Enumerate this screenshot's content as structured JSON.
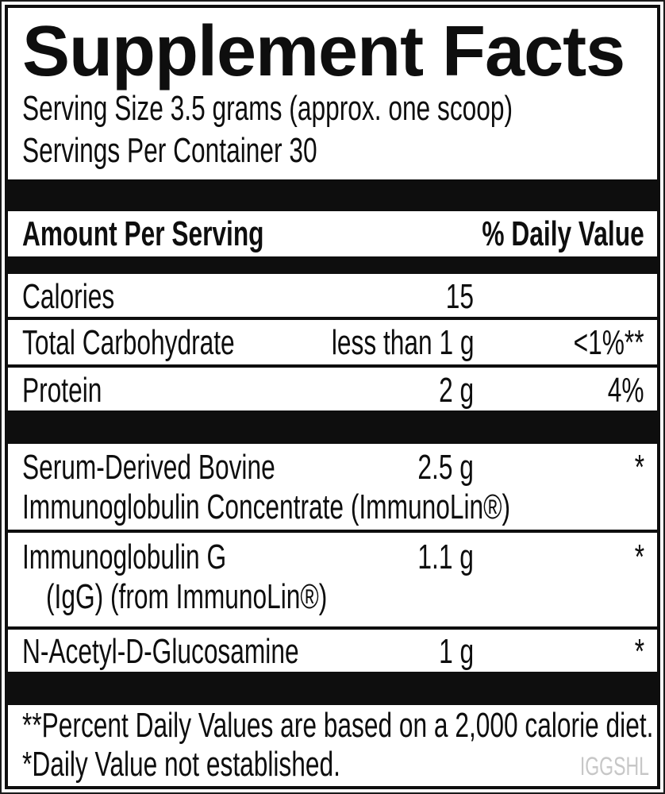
{
  "colors": {
    "ink": "#0e0e0e",
    "background": "#ffffff",
    "watermark": "#c7c7c7"
  },
  "panel": {
    "title": "Supplement Facts",
    "serving_size_line": "Serving Size 3.5 grams (approx. one scoop)",
    "servings_per_container_line": "Servings Per Container 30",
    "header": {
      "amount_label": "Amount Per Serving",
      "daily_value_label": "% Daily Value"
    },
    "rows": [
      {
        "name_lines": [
          "Calories"
        ],
        "amount": "15",
        "daily_value": ""
      },
      {
        "name_lines": [
          "Total Carbohydrate"
        ],
        "amount": "less than 1 g",
        "daily_value": "<1%**"
      },
      {
        "name_lines": [
          "Protein"
        ],
        "amount": "2 g",
        "daily_value": "4%"
      },
      {
        "name_lines": [
          "Serum-Derived Bovine",
          "Immunoglobulin Concentrate (ImmunoLin®)"
        ],
        "amount": "2.5 g",
        "daily_value": "*"
      },
      {
        "name_lines": [
          "Immunoglobulin G",
          "(IgG) (from ImmunoLin®)"
        ],
        "amount": "1.1 g",
        "daily_value": "*"
      },
      {
        "name_lines": [
          "N-Acetyl-D-Glucosamine"
        ],
        "amount": "1 g",
        "daily_value": "*"
      }
    ],
    "footnotes": [
      "**Percent Daily Values are based on a 2,000 calorie diet.",
      "*Daily Value not established."
    ],
    "watermark": "IGGSHL"
  }
}
